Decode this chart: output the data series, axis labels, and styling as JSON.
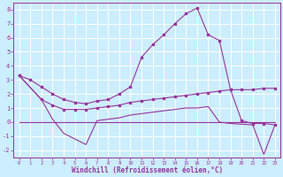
{
  "background_color": "#cceeff",
  "grid_color": "#ffffff",
  "line_color": "#993399",
  "xlabel": "Windchill (Refroidissement éolien,°C)",
  "xlim": [
    -0.5,
    23.5
  ],
  "ylim": [
    -2.5,
    8.5
  ],
  "yticks": [
    -2,
    -1,
    0,
    1,
    2,
    3,
    4,
    5,
    6,
    7,
    8
  ],
  "xticks": [
    0,
    1,
    2,
    3,
    4,
    5,
    6,
    7,
    8,
    9,
    10,
    11,
    12,
    13,
    14,
    15,
    16,
    17,
    18,
    19,
    20,
    21,
    22,
    23
  ],
  "series1_x": [
    0,
    1,
    2,
    3,
    4,
    5,
    6,
    7,
    8,
    9,
    10,
    11,
    12,
    13,
    14,
    15,
    16,
    17,
    18,
    19,
    20,
    21,
    22,
    23
  ],
  "series1_y": [
    3.3,
    3.0,
    2.5,
    2.0,
    1.6,
    1.4,
    1.3,
    1.5,
    1.6,
    2.0,
    2.5,
    4.6,
    5.5,
    6.2,
    7.0,
    7.7,
    8.1,
    6.2,
    5.8,
    2.3,
    0.1,
    -0.1,
    -0.1,
    -0.2
  ],
  "series2_x": [
    0,
    2,
    3,
    4,
    5,
    6,
    7,
    8,
    9,
    10,
    11,
    12,
    13,
    14,
    15,
    16,
    17,
    18,
    19,
    20,
    21,
    22,
    23
  ],
  "series2_y": [
    3.3,
    1.6,
    1.2,
    0.9,
    0.9,
    0.9,
    1.0,
    1.1,
    1.2,
    1.4,
    1.5,
    1.6,
    1.7,
    1.8,
    1.9,
    2.0,
    2.1,
    2.2,
    2.3,
    2.3,
    2.3,
    2.4,
    2.4
  ],
  "series3_x": [
    0,
    2,
    3,
    4,
    5,
    6,
    7,
    8,
    9,
    10,
    11,
    12,
    13,
    14,
    15,
    16,
    17,
    18,
    19,
    20,
    21,
    22,
    23
  ],
  "series3_y": [
    3.3,
    1.6,
    0.2,
    -0.8,
    -1.2,
    -1.6,
    0.1,
    0.2,
    0.3,
    0.5,
    0.6,
    0.7,
    0.8,
    0.9,
    1.0,
    1.0,
    1.1,
    0.0,
    -0.1,
    -0.15,
    -0.2,
    -2.3,
    -0.2
  ],
  "series4_x": [
    0,
    1,
    2,
    3,
    4,
    5,
    6,
    7,
    8,
    9,
    10,
    11,
    12,
    13,
    14,
    15,
    16,
    17,
    18,
    19,
    20,
    21,
    22,
    23
  ],
  "series4_y": [
    0.0,
    0.0,
    0.0,
    0.0,
    0.0,
    0.0,
    0.0,
    0.0,
    0.0,
    0.0,
    0.0,
    0.0,
    0.0,
    0.0,
    0.0,
    0.0,
    0.0,
    0.0,
    0.0,
    0.0,
    0.0,
    0.0,
    0.0,
    0.0
  ]
}
